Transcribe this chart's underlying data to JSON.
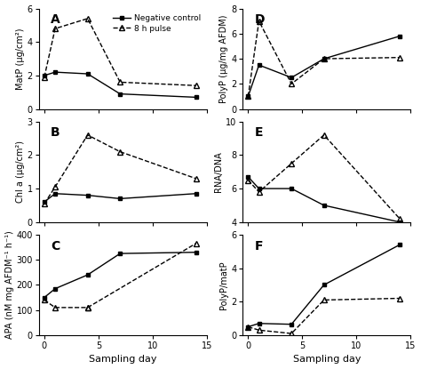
{
  "days": [
    0,
    1,
    4,
    7,
    14
  ],
  "A": {
    "label": "A",
    "ylabel": "MatP (μg/cm²)",
    "ylim": [
      0,
      6
    ],
    "yticks": [
      0,
      2,
      4,
      6
    ],
    "neg_ctrl": [
      2.0,
      2.2,
      2.1,
      0.9,
      0.7
    ],
    "pulse": [
      1.9,
      4.8,
      5.4,
      1.6,
      1.4
    ]
  },
  "B": {
    "label": "B",
    "ylabel": "Chl a (μg/cm²)",
    "ylim": [
      0,
      3
    ],
    "yticks": [
      0,
      1,
      2,
      3
    ],
    "neg_ctrl": [
      0.6,
      0.85,
      0.8,
      0.7,
      0.85
    ],
    "pulse": [
      0.55,
      1.05,
      2.6,
      2.1,
      1.3
    ]
  },
  "C": {
    "label": "C",
    "ylabel": "APA (nM mg AFDM⁻¹ h⁻¹)",
    "ylim": [
      0,
      400
    ],
    "yticks": [
      0,
      100,
      200,
      300,
      400
    ],
    "neg_ctrl": [
      150,
      185,
      240,
      325,
      330
    ],
    "pulse_seg1_days": [
      0,
      1,
      4
    ],
    "pulse_seg1_vals": [
      140,
      110,
      110
    ],
    "pulse_seg2_days": [
      4,
      14
    ],
    "pulse_seg2_vals": [
      110,
      365
    ]
  },
  "D": {
    "label": "D",
    "ylabel": "PolyP (μg/mg AFDM)",
    "ylim": [
      0,
      8
    ],
    "yticks": [
      0,
      2,
      4,
      6,
      8
    ],
    "neg_ctrl": [
      1.0,
      3.5,
      2.5,
      4.0,
      5.8
    ],
    "pulse": [
      1.0,
      7.0,
      2.0,
      4.0,
      4.1
    ]
  },
  "E": {
    "label": "E",
    "ylabel": "RNA/DNA",
    "ylim": [
      4,
      10
    ],
    "yticks": [
      4,
      6,
      8,
      10
    ],
    "neg_ctrl": [
      6.7,
      6.0,
      6.0,
      5.0,
      4.0
    ],
    "pulse": [
      6.5,
      5.8,
      7.5,
      9.2,
      4.2
    ]
  },
  "F": {
    "label": "F",
    "ylabel": "PolyP/matP",
    "ylim": [
      0,
      6
    ],
    "yticks": [
      0,
      2,
      4,
      6
    ],
    "neg_ctrl": [
      0.5,
      0.7,
      0.65,
      3.0,
      5.4
    ],
    "pulse": [
      0.5,
      0.3,
      0.1,
      2.1,
      2.2
    ]
  },
  "neg_ctrl_label": "Negative control",
  "pulse_label": "8 h pulse",
  "xlabel": "Sampling day",
  "xlim": [
    -0.5,
    15
  ],
  "xticks": [
    0,
    5,
    10,
    15
  ]
}
